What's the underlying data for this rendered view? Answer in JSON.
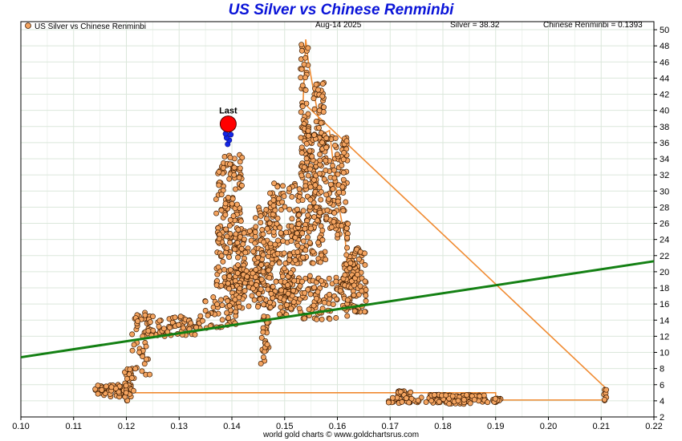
{
  "title": "US Silver vs Chinese Renminbi",
  "footer": "world gold charts © www.goldchartsrus.com",
  "header": {
    "legend_label": "US Silver vs Chinese Renminbi",
    "date": "Aug-14  2025",
    "silver_readout": "Silver = 38.32",
    "renminbi_readout": "Chinese Renminbi = 0.1393"
  },
  "last_label": "Last",
  "colors": {
    "title": "#0a14d8",
    "points": "#f4a460",
    "point_stroke": "#3a1a00",
    "path": "#f08a30",
    "trend": "#138013",
    "recent": "#1428e6",
    "last": "#ff0000",
    "grid": "#dbe7db"
  },
  "chart_data": {
    "type": "scatter",
    "title": "US Silver vs Chinese Renminbi",
    "xlabel": "",
    "ylabel": "",
    "xlim": [
      0.1,
      0.22
    ],
    "ylim": [
      2,
      51
    ],
    "x_ticks": [
      0.1,
      0.11,
      0.12,
      0.13,
      0.14,
      0.15,
      0.16,
      0.17,
      0.18,
      0.19,
      0.2,
      0.21,
      0.22
    ],
    "y_ticks": [
      2,
      4,
      6,
      8,
      10,
      12,
      14,
      16,
      18,
      20,
      22,
      24,
      26,
      28,
      30,
      32,
      34,
      36,
      38,
      40,
      42,
      44,
      46,
      48,
      50
    ],
    "grid": true,
    "legend_position": "top-left",
    "clusters": [
      {
        "x": [
          0.114,
          0.121
        ],
        "y": [
          4.5,
          6.0
        ],
        "n": 55
      },
      {
        "x": [
          0.1195,
          0.1215
        ],
        "y": [
          4.0,
          8.0
        ],
        "n": 35
      },
      {
        "x": [
          0.121,
          0.1245
        ],
        "y": [
          7.0,
          15.0
        ],
        "n": 40
      },
      {
        "x": [
          0.124,
          0.134
        ],
        "y": [
          12.0,
          14.5
        ],
        "n": 70
      },
      {
        "x": [
          0.134,
          0.141
        ],
        "y": [
          13.0,
          17.0
        ],
        "n": 45
      },
      {
        "x": [
          0.137,
          0.142
        ],
        "y": [
          24.0,
          34.5
        ],
        "n": 110
      },
      {
        "x": [
          0.137,
          0.146
        ],
        "y": [
          18.0,
          25.5
        ],
        "n": 120
      },
      {
        "x": [
          0.139,
          0.152
        ],
        "y": [
          15.5,
          20.5
        ],
        "n": 170
      },
      {
        "x": [
          0.144,
          0.148
        ],
        "y": [
          20.0,
          28.0
        ],
        "n": 70
      },
      {
        "x": [
          0.1455,
          0.147
        ],
        "y": [
          8.5,
          15.0
        ],
        "n": 30
      },
      {
        "x": [
          0.147,
          0.153
        ],
        "y": [
          21.0,
          31.0
        ],
        "n": 110
      },
      {
        "x": [
          0.149,
          0.162
        ],
        "y": [
          14.0,
          19.5
        ],
        "n": 140
      },
      {
        "x": [
          0.152,
          0.158
        ],
        "y": [
          21.0,
          28.0
        ],
        "n": 100
      },
      {
        "x": [
          0.153,
          0.1545
        ],
        "y": [
          32.0,
          48.5
        ],
        "n": 50
      },
      {
        "x": [
          0.1555,
          0.1575
        ],
        "y": [
          36.0,
          43.5
        ],
        "n": 40
      },
      {
        "x": [
          0.153,
          0.156
        ],
        "y": [
          28.0,
          38.0
        ],
        "n": 70
      },
      {
        "x": [
          0.1565,
          0.162
        ],
        "y": [
          24.0,
          37.0
        ],
        "n": 140
      },
      {
        "x": [
          0.161,
          0.1655
        ],
        "y": [
          15.0,
          23.0
        ],
        "n": 110
      },
      {
        "x": [
          0.1715,
          0.174
        ],
        "y": [
          3.7,
          5.3
        ],
        "n": 30
      },
      {
        "x": [
          0.169,
          0.177
        ],
        "y": [
          3.7,
          4.4
        ],
        "n": 20
      },
      {
        "x": [
          0.177,
          0.1885
        ],
        "y": [
          3.6,
          4.8
        ],
        "n": 85
      },
      {
        "x": [
          0.1895,
          0.191
        ],
        "y": [
          3.8,
          4.3
        ],
        "n": 18
      },
      {
        "x": [
          0.2105,
          0.211
        ],
        "y": [
          3.9,
          5.6
        ],
        "n": 10
      }
    ],
    "path": [
      [
        0.114,
        5.2
      ],
      [
        0.117,
        5.3
      ],
      [
        0.12,
        5.0
      ],
      [
        0.1205,
        7.5
      ],
      [
        0.121,
        5.0
      ],
      [
        0.19,
        5.0
      ],
      [
        0.19,
        4.1
      ],
      [
        0.211,
        4.1
      ],
      [
        0.211,
        5.5
      ],
      [
        0.1535,
        41
      ],
      [
        0.154,
        48.8
      ],
      [
        0.1545,
        46
      ],
      [
        0.157,
        37
      ],
      [
        0.1585,
        37.5
      ],
      [
        0.16,
        29
      ],
      [
        0.1615,
        24
      ],
      [
        0.162,
        19
      ]
    ],
    "trend_line": {
      "x": [
        0.1,
        0.22
      ],
      "y": [
        9.4,
        21.3
      ]
    },
    "recent_points": {
      "x": [
        0.1392,
        0.1395,
        0.139,
        0.1398,
        0.1388,
        0.1394,
        0.1396,
        0.1391,
        0.1393
      ],
      "y": [
        35.8,
        36.3,
        36.6,
        37.0,
        37.1,
        37.6,
        38.0,
        38.3,
        39.0
      ]
    },
    "last_point": {
      "x": 0.1393,
      "y": 38.32
    }
  }
}
